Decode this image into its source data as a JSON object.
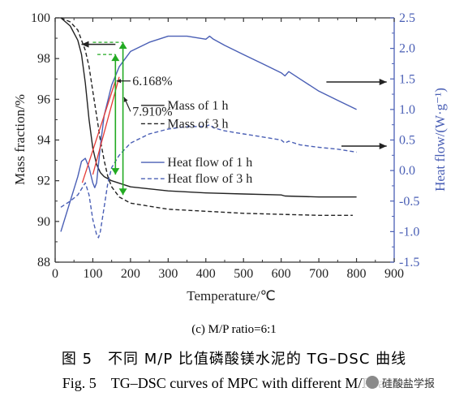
{
  "chart_data": {
    "type": "line",
    "xlabel": "Temperature/℃",
    "ylabel_left": "Mass fraction/%",
    "ylabel_right": "Heat flow/(W·g⁻¹)",
    "xlim": [
      0,
      900
    ],
    "ylim_left": [
      88,
      100
    ],
    "ylim_right": [
      -1.5,
      2.5
    ],
    "x_ticks": [
      "0",
      "100",
      "200",
      "300",
      "400",
      "500",
      "600",
      "700",
      "800",
      "900"
    ],
    "y_ticks_left": [
      "88",
      "90",
      "92",
      "94",
      "96",
      "98",
      "100"
    ],
    "y_ticks_right": [
      "-1.5",
      "-1.0",
      "-0.5",
      "0.0",
      "0.5",
      "1.0",
      "1.5",
      "2.0",
      "2.5"
    ],
    "series": [
      {
        "name": "Mass of 1 h",
        "axis": "left",
        "color": "#222222",
        "dash": "solid",
        "x": [
          15,
          40,
          60,
          70,
          80,
          90,
          100,
          110,
          120,
          130,
          150,
          200,
          300,
          400,
          500,
          600,
          610,
          700,
          800
        ],
        "y": [
          100,
          99.6,
          98.9,
          98.2,
          96.8,
          95.0,
          93.6,
          92.8,
          92.4,
          92.2,
          92.0,
          91.7,
          91.5,
          91.4,
          91.35,
          91.3,
          91.25,
          91.2,
          91.2
        ]
      },
      {
        "name": "Mass of 3 h",
        "axis": "left",
        "color": "#222222",
        "dash": "dashed",
        "x": [
          15,
          40,
          60,
          80,
          90,
          100,
          110,
          120,
          130,
          140,
          150,
          170,
          200,
          300,
          400,
          500,
          600,
          700,
          790
        ],
        "y": [
          100,
          99.8,
          99.4,
          98.4,
          97.6,
          96.4,
          95.2,
          94.0,
          93.0,
          92.2,
          91.7,
          91.2,
          90.9,
          90.6,
          90.5,
          90.4,
          90.35,
          90.3,
          90.3
        ]
      },
      {
        "name": "Heat flow of 1 h",
        "axis": "right",
        "color": "#4a5fb5",
        "dash": "solid",
        "x": [
          15,
          40,
          60,
          70,
          80,
          90,
          100,
          105,
          110,
          120,
          130,
          150,
          170,
          200,
          250,
          300,
          350,
          400,
          410,
          420,
          450,
          500,
          550,
          600,
          610,
          620,
          650,
          700,
          750,
          800
        ],
        "y": [
          -1.0,
          -0.5,
          -0.1,
          0.15,
          0.2,
          0.05,
          -0.2,
          -0.28,
          -0.2,
          0.4,
          0.9,
          1.4,
          1.7,
          1.95,
          2.1,
          2.2,
          2.2,
          2.15,
          2.2,
          2.15,
          2.05,
          1.9,
          1.75,
          1.6,
          1.55,
          1.62,
          1.5,
          1.3,
          1.15,
          1.0
        ]
      },
      {
        "name": "Heat flow of 3 h",
        "axis": "right",
        "color": "#4a5fb5",
        "dash": "dashed",
        "x": [
          15,
          40,
          60,
          80,
          90,
          100,
          110,
          115,
          120,
          130,
          140,
          150,
          170,
          200,
          250,
          300,
          350,
          400,
          410,
          420,
          450,
          500,
          550,
          600,
          610,
          620,
          650,
          700,
          750,
          800
        ],
        "y": [
          -0.6,
          -0.5,
          -0.4,
          -0.2,
          -0.4,
          -0.8,
          -1.05,
          -1.1,
          -1.0,
          -0.6,
          -0.2,
          0.05,
          0.25,
          0.45,
          0.6,
          0.68,
          0.72,
          0.72,
          0.75,
          0.7,
          0.65,
          0.6,
          0.55,
          0.5,
          0.45,
          0.48,
          0.42,
          0.38,
          0.35,
          0.3
        ]
      }
    ],
    "annotations": [
      {
        "text": "6.168%",
        "color": "#22aa22"
      },
      {
        "text": "7.910%",
        "color": "#22aa22"
      }
    ],
    "legend_position": "center-right"
  },
  "captions": {
    "sub": "(c) M/P ratio=6:1",
    "cn": "图 5　不同 M/P 比值磷酸镁水泥的 TG–DSC 曲线",
    "en": "Fig. 5　TG–DSC curves of MPC with different M/P ratios",
    "watermark": "硅酸盐学报"
  }
}
